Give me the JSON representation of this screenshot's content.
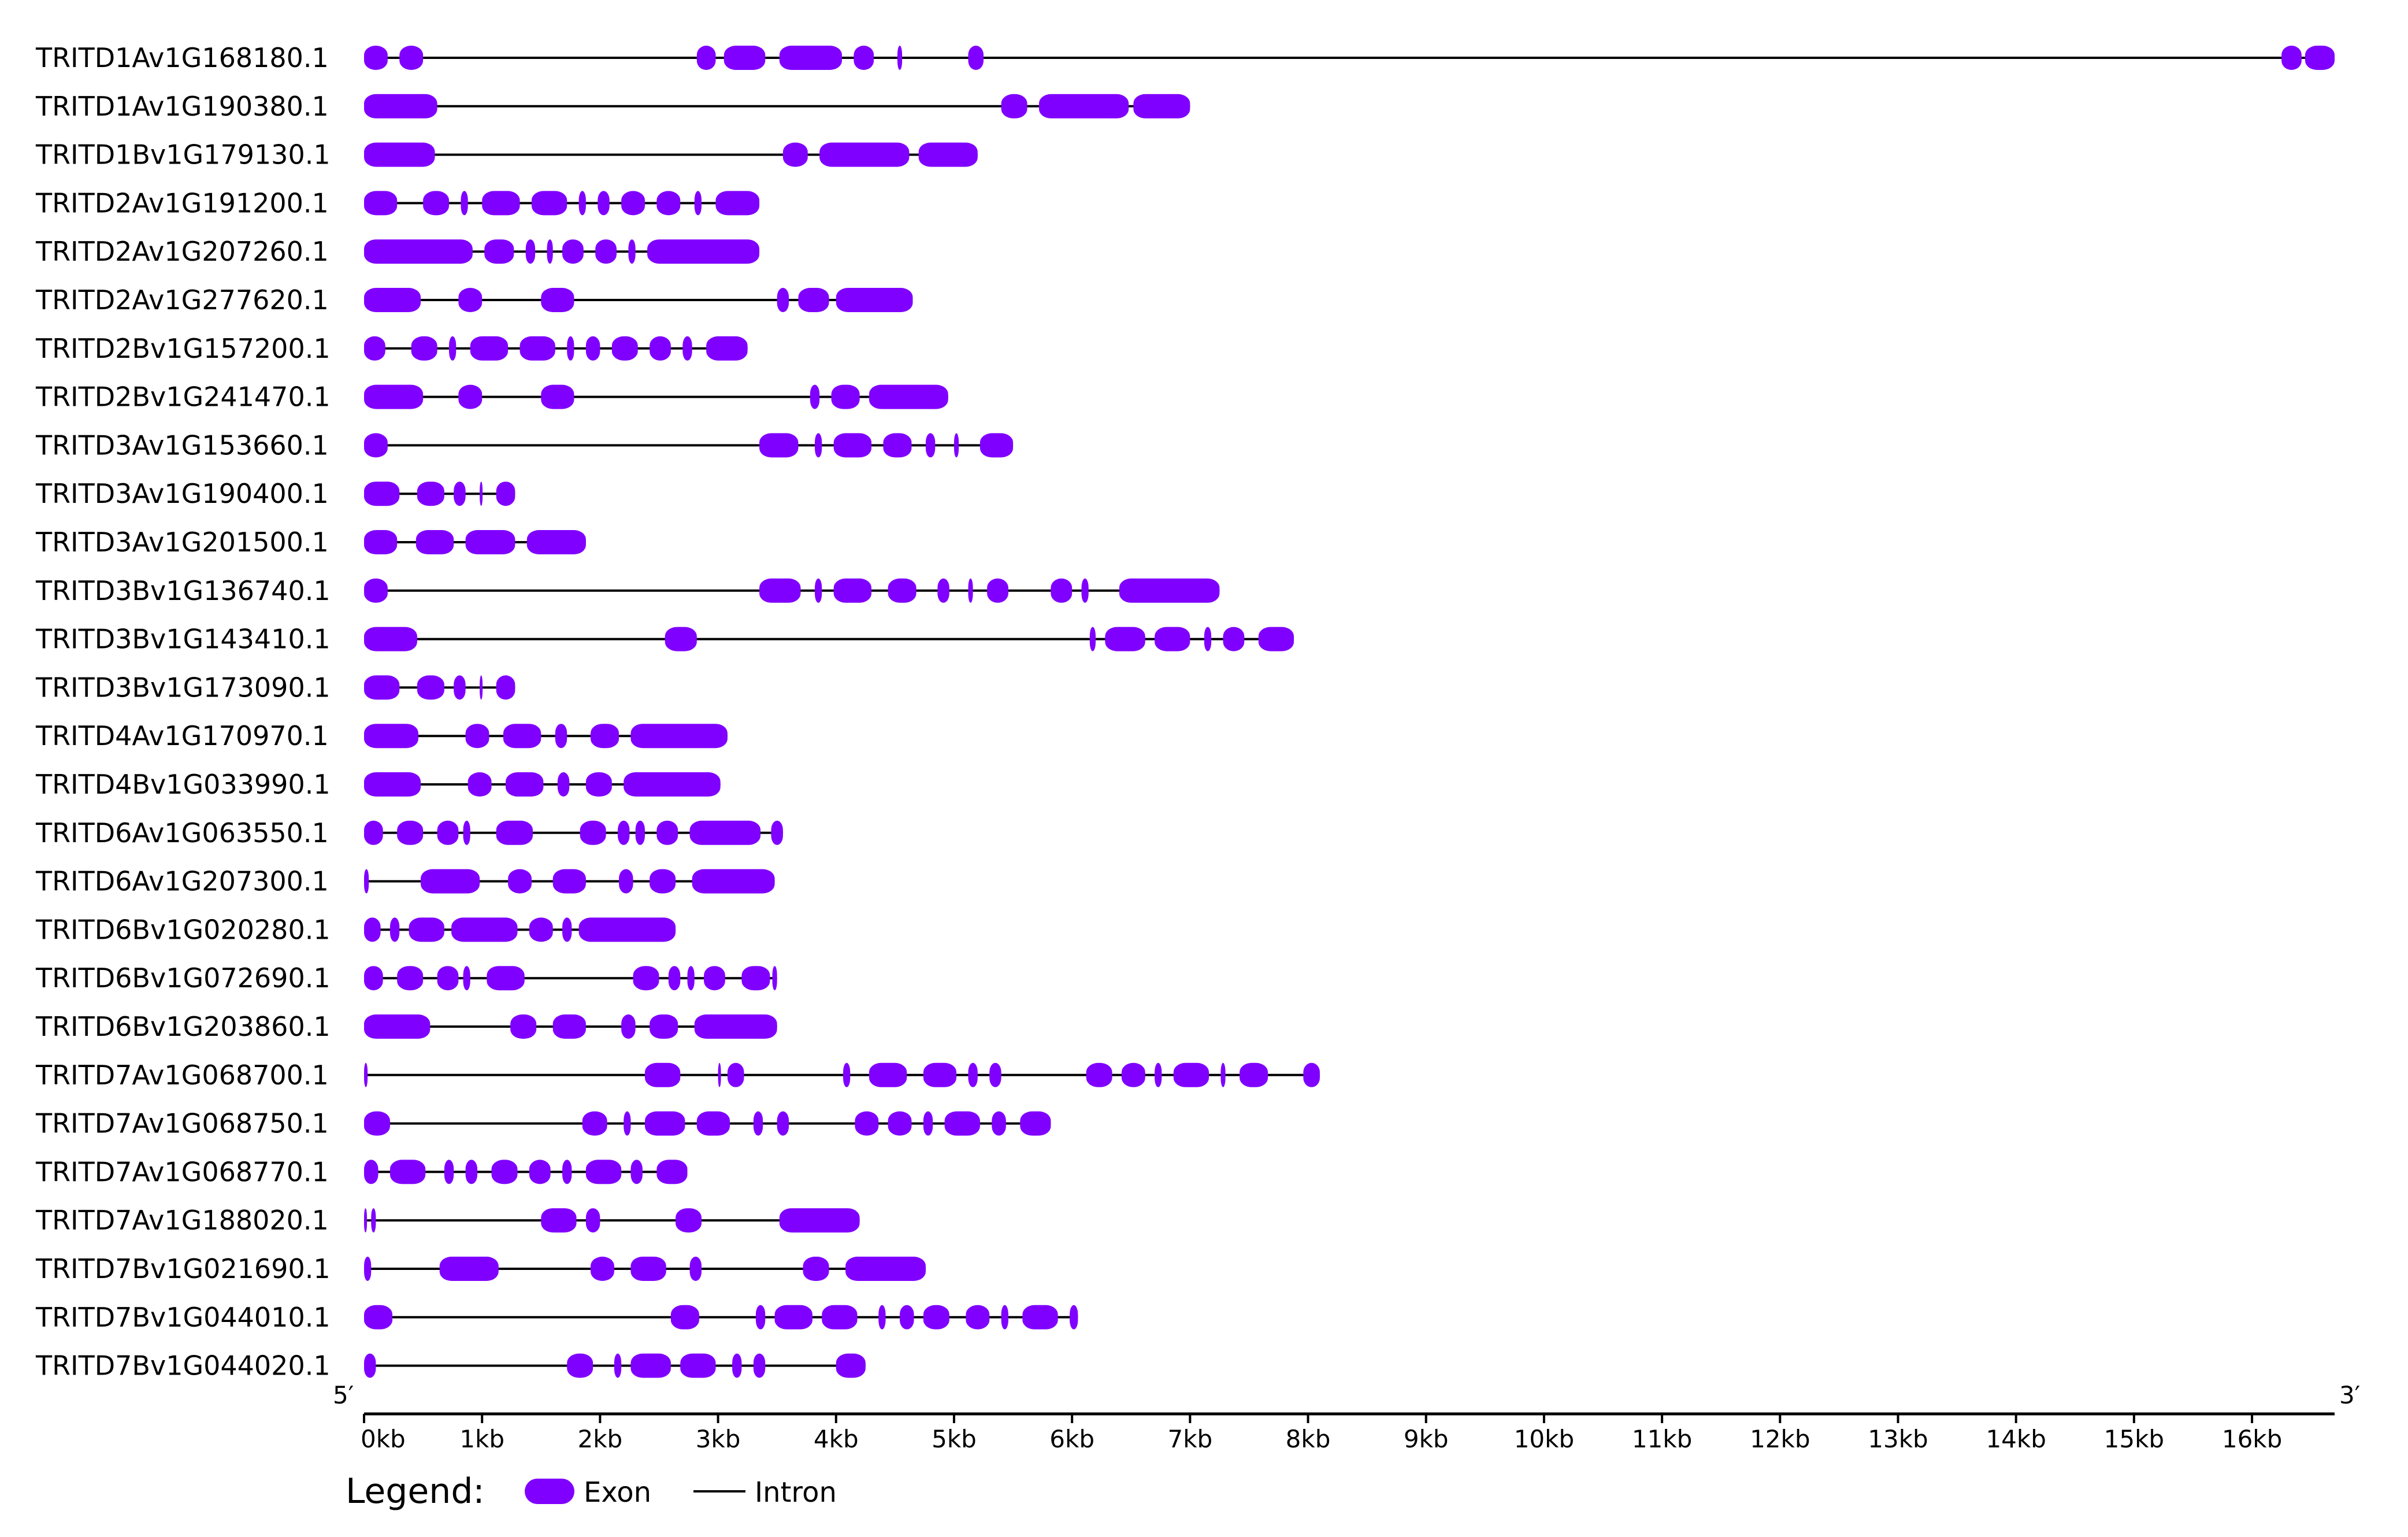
{
  "legend": {
    "title": "Legend:",
    "exon_label": "Exon",
    "intron_label": "Intron"
  },
  "axis": {
    "five_prime": "5′",
    "three_prime": "3′",
    "ticks": [
      "0kb",
      "1kb",
      "2kb",
      "3kb",
      "4kb",
      "5kb",
      "6kb",
      "7kb",
      "8kb",
      "9kb",
      "10kb",
      "11kb",
      "12kb",
      "13kb",
      "14kb",
      "15kb",
      "16kb"
    ],
    "max_kb": 16.7
  },
  "colors": {
    "exon": "#8000ff",
    "intron": "#000000",
    "axis": "#000000"
  },
  "chart_data": {
    "type": "gene-structure",
    "x_unit": "kb",
    "genes": [
      {
        "name": "TRITD1Av1G168180.1",
        "length": 16.7,
        "exons": [
          [
            0,
            0.2
          ],
          [
            0.3,
            0.5
          ],
          [
            2.82,
            2.98
          ],
          [
            3.05,
            3.4
          ],
          [
            3.52,
            4.05
          ],
          [
            4.15,
            4.32
          ],
          [
            4.52,
            4.56
          ],
          [
            5.12,
            5.25
          ],
          [
            16.25,
            16.42
          ],
          [
            16.45,
            16.7
          ]
        ]
      },
      {
        "name": "TRITD1Av1G190380.1",
        "length": 7.0,
        "exons": [
          [
            0,
            0.62
          ],
          [
            5.4,
            5.62
          ],
          [
            5.72,
            6.48
          ],
          [
            6.52,
            7.0
          ]
        ]
      },
      {
        "name": "TRITD1Bv1G179130.1",
        "length": 5.2,
        "exons": [
          [
            0,
            0.6
          ],
          [
            3.55,
            3.76
          ],
          [
            3.86,
            4.62
          ],
          [
            4.7,
            5.2
          ]
        ]
      },
      {
        "name": "TRITD2Av1G191200.1",
        "length": 3.35,
        "exons": [
          [
            0,
            0.28
          ],
          [
            0.5,
            0.72
          ],
          [
            0.82,
            0.88
          ],
          [
            1.0,
            1.32
          ],
          [
            1.42,
            1.72
          ],
          [
            1.82,
            1.88
          ],
          [
            1.98,
            2.08
          ],
          [
            2.18,
            2.38
          ],
          [
            2.48,
            2.68
          ],
          [
            2.8,
            2.86
          ],
          [
            2.98,
            3.35
          ]
        ]
      },
      {
        "name": "TRITD2Av1G207260.1",
        "length": 3.35,
        "exons": [
          [
            0,
            0.92
          ],
          [
            1.02,
            1.27
          ],
          [
            1.37,
            1.45
          ],
          [
            1.55,
            1.6
          ],
          [
            1.68,
            1.86
          ],
          [
            1.96,
            2.14
          ],
          [
            2.24,
            2.3
          ],
          [
            2.4,
            3.35
          ]
        ]
      },
      {
        "name": "TRITD2Av1G277620.1",
        "length": 4.65,
        "exons": [
          [
            0,
            0.48
          ],
          [
            0.8,
            1.0
          ],
          [
            1.5,
            1.78
          ],
          [
            3.5,
            3.6
          ],
          [
            3.68,
            3.94
          ],
          [
            4.0,
            4.65
          ]
        ]
      },
      {
        "name": "TRITD2Bv1G157200.1",
        "length": 3.25,
        "exons": [
          [
            0,
            0.18
          ],
          [
            0.4,
            0.62
          ],
          [
            0.72,
            0.78
          ],
          [
            0.9,
            1.22
          ],
          [
            1.32,
            1.62
          ],
          [
            1.72,
            1.78
          ],
          [
            1.88,
            2.0
          ],
          [
            2.1,
            2.32
          ],
          [
            2.42,
            2.6
          ],
          [
            2.7,
            2.78
          ],
          [
            2.9,
            3.25
          ]
        ]
      },
      {
        "name": "TRITD2Bv1G241470.1",
        "length": 4.95,
        "exons": [
          [
            0,
            0.5
          ],
          [
            0.8,
            1.0
          ],
          [
            1.5,
            1.78
          ],
          [
            3.78,
            3.86
          ],
          [
            3.96,
            4.2
          ],
          [
            4.28,
            4.95
          ]
        ]
      },
      {
        "name": "TRITD3Av1G153660.1",
        "length": 5.5,
        "exons": [
          [
            0,
            0.2
          ],
          [
            3.35,
            3.68
          ],
          [
            3.82,
            3.88
          ],
          [
            3.98,
            4.3
          ],
          [
            4.4,
            4.64
          ],
          [
            4.76,
            4.84
          ],
          [
            5.0,
            5.04
          ],
          [
            5.22,
            5.5
          ]
        ]
      },
      {
        "name": "TRITD3Av1G190400.1",
        "length": 1.28,
        "exons": [
          [
            0,
            0.3
          ],
          [
            0.45,
            0.68
          ],
          [
            0.76,
            0.86
          ],
          [
            0.98,
            1.0
          ],
          [
            1.12,
            1.28
          ]
        ]
      },
      {
        "name": "TRITD3Av1G201500.1",
        "length": 1.88,
        "exons": [
          [
            0,
            0.28
          ],
          [
            0.44,
            0.76
          ],
          [
            0.86,
            1.28
          ],
          [
            1.38,
            1.88
          ]
        ]
      },
      {
        "name": "TRITD3Bv1G136740.1",
        "length": 7.25,
        "exons": [
          [
            0,
            0.2
          ],
          [
            3.35,
            3.7
          ],
          [
            3.82,
            3.88
          ],
          [
            3.98,
            4.3
          ],
          [
            4.44,
            4.68
          ],
          [
            4.86,
            4.96
          ],
          [
            5.12,
            5.16
          ],
          [
            5.28,
            5.46
          ],
          [
            5.82,
            6.0
          ],
          [
            6.08,
            6.14
          ],
          [
            6.4,
            7.25
          ]
        ]
      },
      {
        "name": "TRITD3Bv1G143410.1",
        "length": 7.88,
        "exons": [
          [
            0,
            0.45
          ],
          [
            2.55,
            2.82
          ],
          [
            6.15,
            6.2
          ],
          [
            6.28,
            6.62
          ],
          [
            6.7,
            7.0
          ],
          [
            7.12,
            7.18
          ],
          [
            7.28,
            7.46
          ],
          [
            7.58,
            7.88
          ]
        ]
      },
      {
        "name": "TRITD3Bv1G173090.1",
        "length": 1.28,
        "exons": [
          [
            0,
            0.3
          ],
          [
            0.45,
            0.68
          ],
          [
            0.76,
            0.86
          ],
          [
            0.98,
            1.0
          ],
          [
            1.12,
            1.28
          ]
        ]
      },
      {
        "name": "TRITD4Av1G170970.1",
        "length": 3.08,
        "exons": [
          [
            0,
            0.46
          ],
          [
            0.86,
            1.06
          ],
          [
            1.18,
            1.5
          ],
          [
            1.62,
            1.72
          ],
          [
            1.92,
            2.16
          ],
          [
            2.26,
            3.08
          ]
        ]
      },
      {
        "name": "TRITD4Bv1G033990.1",
        "length": 3.02,
        "exons": [
          [
            0,
            0.48
          ],
          [
            0.88,
            1.08
          ],
          [
            1.2,
            1.52
          ],
          [
            1.64,
            1.74
          ],
          [
            1.88,
            2.1
          ],
          [
            2.2,
            3.02
          ]
        ]
      },
      {
        "name": "TRITD6Av1G063550.1",
        "length": 3.55,
        "exons": [
          [
            0,
            0.16
          ],
          [
            0.28,
            0.5
          ],
          [
            0.62,
            0.8
          ],
          [
            0.84,
            0.9
          ],
          [
            1.12,
            1.43
          ],
          [
            1.83,
            2.05
          ],
          [
            2.15,
            2.25
          ],
          [
            2.3,
            2.38
          ],
          [
            2.48,
            2.66
          ],
          [
            2.76,
            3.36
          ],
          [
            3.45,
            3.55
          ]
        ]
      },
      {
        "name": "TRITD6Av1G207300.1",
        "length": 3.48,
        "exons": [
          [
            0,
            0.04
          ],
          [
            0.48,
            0.98
          ],
          [
            1.22,
            1.42
          ],
          [
            1.6,
            1.88
          ],
          [
            2.16,
            2.28
          ],
          [
            2.42,
            2.64
          ],
          [
            2.78,
            3.48
          ]
        ]
      },
      {
        "name": "TRITD6Bv1G020280.1",
        "length": 2.64,
        "exons": [
          [
            0,
            0.14
          ],
          [
            0.22,
            0.3
          ],
          [
            0.38,
            0.68
          ],
          [
            0.74,
            1.3
          ],
          [
            1.4,
            1.6
          ],
          [
            1.68,
            1.76
          ],
          [
            1.82,
            2.64
          ]
        ]
      },
      {
        "name": "TRITD6Bv1G072690.1",
        "length": 3.5,
        "exons": [
          [
            0,
            0.16
          ],
          [
            0.28,
            0.5
          ],
          [
            0.62,
            0.8
          ],
          [
            0.84,
            0.9
          ],
          [
            1.04,
            1.36
          ],
          [
            2.28,
            2.5
          ],
          [
            2.58,
            2.68
          ],
          [
            2.74,
            2.8
          ],
          [
            2.88,
            3.06
          ],
          [
            3.2,
            3.44
          ],
          [
            3.46,
            3.5
          ]
        ]
      },
      {
        "name": "TRITD6Bv1G203860.1",
        "length": 3.5,
        "exons": [
          [
            0,
            0.56
          ],
          [
            1.24,
            1.46
          ],
          [
            1.6,
            1.88
          ],
          [
            2.18,
            2.3
          ],
          [
            2.42,
            2.66
          ],
          [
            2.8,
            3.5
          ]
        ]
      },
      {
        "name": "TRITD7Av1G068700.1",
        "length": 8.1,
        "exons": [
          [
            0,
            0.03
          ],
          [
            2.38,
            2.68
          ],
          [
            3.0,
            3.02
          ],
          [
            3.08,
            3.22
          ],
          [
            4.06,
            4.12
          ],
          [
            4.28,
            4.6
          ],
          [
            4.74,
            5.02
          ],
          [
            5.12,
            5.2
          ],
          [
            5.3,
            5.4
          ],
          [
            6.12,
            6.34
          ],
          [
            6.42,
            6.62
          ],
          [
            6.7,
            6.76
          ],
          [
            6.86,
            7.16
          ],
          [
            7.26,
            7.3
          ],
          [
            7.42,
            7.66
          ],
          [
            7.96,
            8.1
          ]
        ]
      },
      {
        "name": "TRITD7Av1G068750.1",
        "length": 5.82,
        "exons": [
          [
            0,
            0.22
          ],
          [
            1.85,
            2.06
          ],
          [
            2.2,
            2.26
          ],
          [
            2.38,
            2.72
          ],
          [
            2.82,
            3.1
          ],
          [
            3.3,
            3.38
          ],
          [
            3.5,
            3.6
          ],
          [
            4.16,
            4.36
          ],
          [
            4.44,
            4.64
          ],
          [
            4.74,
            4.82
          ],
          [
            4.92,
            5.22
          ],
          [
            5.32,
            5.44
          ],
          [
            5.56,
            5.82
          ]
        ]
      },
      {
        "name": "TRITD7Av1G068770.1",
        "length": 2.74,
        "exons": [
          [
            0,
            0.12
          ],
          [
            0.22,
            0.52
          ],
          [
            0.68,
            0.76
          ],
          [
            0.86,
            0.96
          ],
          [
            1.08,
            1.3
          ],
          [
            1.4,
            1.58
          ],
          [
            1.68,
            1.76
          ],
          [
            1.88,
            2.18
          ],
          [
            2.26,
            2.36
          ],
          [
            2.48,
            2.74
          ]
        ]
      },
      {
        "name": "TRITD7Av1G188020.1",
        "length": 4.2,
        "exons": [
          [
            0,
            0.02
          ],
          [
            0.06,
            0.1
          ],
          [
            1.5,
            1.8
          ],
          [
            1.88,
            2.0
          ],
          [
            2.64,
            2.86
          ],
          [
            3.52,
            4.2
          ]
        ]
      },
      {
        "name": "TRITD7Bv1G021690.1",
        "length": 4.76,
        "exons": [
          [
            0,
            0.06
          ],
          [
            0.64,
            1.14
          ],
          [
            1.92,
            2.12
          ],
          [
            2.26,
            2.56
          ],
          [
            2.76,
            2.86
          ],
          [
            3.72,
            3.94
          ],
          [
            4.08,
            4.76
          ]
        ]
      },
      {
        "name": "TRITD7Bv1G044010.1",
        "length": 6.05,
        "exons": [
          [
            0,
            0.24
          ],
          [
            2.6,
            2.84
          ],
          [
            3.32,
            3.4
          ],
          [
            3.48,
            3.8
          ],
          [
            3.88,
            4.18
          ],
          [
            4.36,
            4.42
          ],
          [
            4.54,
            4.66
          ],
          [
            4.74,
            4.96
          ],
          [
            5.1,
            5.3
          ],
          [
            5.4,
            5.46
          ],
          [
            5.58,
            5.88
          ],
          [
            5.98,
            6.05
          ]
        ]
      },
      {
        "name": "TRITD7Bv1G044020.1",
        "length": 4.25,
        "exons": [
          [
            0,
            0.1
          ],
          [
            1.72,
            1.94
          ],
          [
            2.12,
            2.18
          ],
          [
            2.26,
            2.6
          ],
          [
            2.68,
            2.98
          ],
          [
            3.12,
            3.2
          ],
          [
            3.3,
            3.4
          ],
          [
            4.0,
            4.25
          ]
        ]
      }
    ]
  }
}
